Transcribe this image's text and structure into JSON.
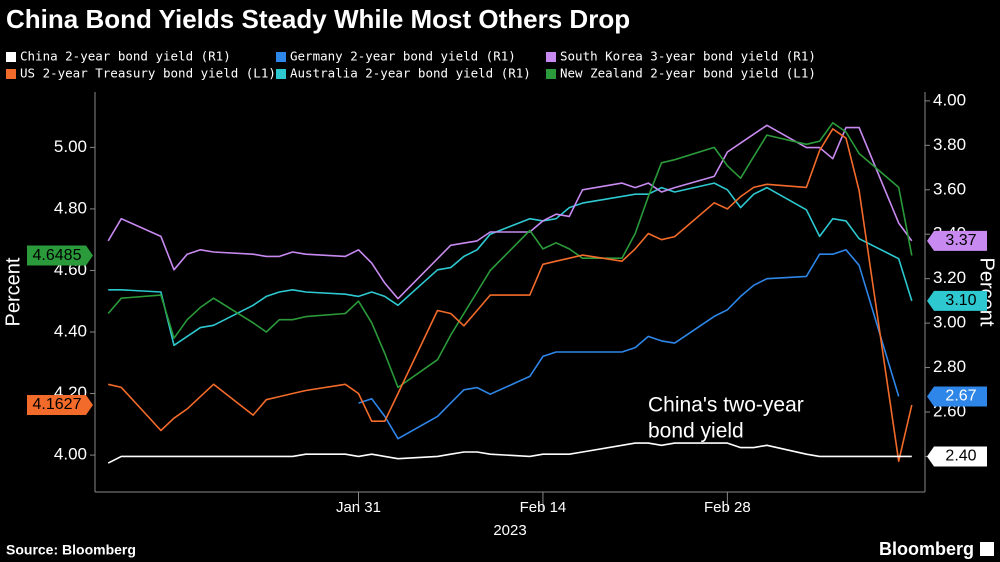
{
  "chart_data": {
    "type": "line",
    "title": "China Bond Yields Steady While Most Others Drop",
    "ylabel": "Percent",
    "y2label": "Percent",
    "x_year_label": "2023",
    "source": "Source: Bloomberg",
    "brand": "Bloomberg",
    "annotation": [
      "China's two-year",
      "bond yield"
    ],
    "grid": false,
    "xlim": [
      "2023-01-11",
      "2023-03-15"
    ],
    "xticks": [
      {
        "value": "2023-01-31",
        "label": "Jan 31"
      },
      {
        "value": "2023-02-14",
        "label": "Feb 14"
      },
      {
        "value": "2023-02-28",
        "label": "Feb 28"
      }
    ],
    "ylim": [
      3.88,
      5.18
    ],
    "yticks": [
      {
        "value": 4,
        "label": "4.00"
      },
      {
        "value": 4.2,
        "label": "4.20"
      },
      {
        "value": 4.4,
        "label": "4.40"
      },
      {
        "value": 4.6,
        "label": "4.60"
      },
      {
        "value": 4.8,
        "label": "4.80"
      },
      {
        "value": 5,
        "label": "5.00"
      }
    ],
    "y2lim": [
      2.24,
      4.04
    ],
    "y2ticks": [
      {
        "value": 2.4,
        "label": "2.40"
      },
      {
        "value": 2.6,
        "label": "2.60"
      },
      {
        "value": 2.8,
        "label": "2.80"
      },
      {
        "value": 3,
        "label": "3.00"
      },
      {
        "value": 3.2,
        "label": "3.20"
      },
      {
        "value": 3.4,
        "label": "3.40"
      },
      {
        "value": 3.6,
        "label": "3.60"
      },
      {
        "value": 3.8,
        "label": "3.80"
      },
      {
        "value": 4,
        "label": "4.00"
      }
    ],
    "x": [
      "2023-01-12",
      "2023-01-13",
      "2023-01-16",
      "2023-01-17",
      "2023-01-18",
      "2023-01-19",
      "2023-01-20",
      "2023-01-23",
      "2023-01-24",
      "2023-01-25",
      "2023-01-26",
      "2023-01-27",
      "2023-01-30",
      "2023-01-31",
      "2023-02-01",
      "2023-02-02",
      "2023-02-03",
      "2023-02-06",
      "2023-02-07",
      "2023-02-08",
      "2023-02-09",
      "2023-02-10",
      "2023-02-13",
      "2023-02-14",
      "2023-02-15",
      "2023-02-16",
      "2023-02-17",
      "2023-02-20",
      "2023-02-21",
      "2023-02-22",
      "2023-02-23",
      "2023-02-24",
      "2023-02-27",
      "2023-02-28",
      "2023-03-01",
      "2023-03-02",
      "2023-03-03",
      "2023-03-06",
      "2023-03-07",
      "2023-03-08",
      "2023-03-09",
      "2023-03-10",
      "2023-03-13",
      "2023-03-14"
    ],
    "series": [
      {
        "name": "China 2-year bond yield (R1)",
        "color": "#ffffff",
        "axis": "y2",
        "last_label": "2.40",
        "values": [
          2.37,
          2.4,
          2.4,
          2.4,
          2.4,
          2.4,
          2.4,
          2.4,
          2.4,
          2.4,
          2.4,
          2.41,
          2.41,
          2.4,
          2.41,
          2.4,
          2.39,
          2.4,
          2.41,
          2.42,
          2.42,
          2.41,
          2.4,
          2.41,
          2.41,
          2.41,
          2.42,
          2.45,
          2.46,
          2.46,
          2.45,
          2.46,
          2.46,
          2.46,
          2.44,
          2.44,
          2.45,
          2.41,
          2.4,
          2.4,
          2.4,
          2.4,
          2.4,
          2.4
        ]
      },
      {
        "name": "US 2-year Treasury bond yield (L1)",
        "color": "#f26b2a",
        "axis": "y",
        "last_label": "4.1627",
        "values": [
          4.23,
          4.22,
          4.08,
          4.12,
          4.15,
          4.19,
          4.23,
          4.13,
          4.18,
          4.19,
          4.2,
          4.21,
          4.23,
          4.2,
          4.11,
          4.11,
          4.2,
          4.47,
          4.46,
          4.42,
          4.47,
          4.52,
          4.52,
          4.62,
          4.63,
          4.64,
          4.65,
          4.63,
          4.67,
          4.72,
          4.7,
          4.71,
          4.82,
          4.8,
          4.84,
          4.87,
          4.88,
          4.87,
          4.99,
          5.06,
          5.03,
          4.86,
          3.98,
          4.1627
        ]
      },
      {
        "name": "Germany 2-year bond yield (R1)",
        "color": "#2e86e8",
        "axis": "y2",
        "last_label": "2.67",
        "values": [
          null,
          null,
          null,
          null,
          null,
          null,
          null,
          null,
          null,
          null,
          null,
          null,
          null,
          2.64,
          2.66,
          2.58,
          2.48,
          2.58,
          2.64,
          2.7,
          2.71,
          2.68,
          2.76,
          2.85,
          2.87,
          2.87,
          2.87,
          2.87,
          2.89,
          2.94,
          2.92,
          2.91,
          3.03,
          3.06,
          3.12,
          3.17,
          3.2,
          3.21,
          3.31,
          3.31,
          3.33,
          3.26,
          2.67,
          null
        ]
      },
      {
        "name": "Australia 2-year bond yield (R1)",
        "color": "#2ec8d0",
        "axis": "y2",
        "last_label": "3.10",
        "values": [
          3.15,
          3.15,
          3.14,
          2.9,
          2.94,
          2.98,
          2.99,
          3.08,
          3.12,
          3.14,
          3.15,
          3.14,
          3.13,
          3.12,
          3.14,
          3.12,
          3.08,
          3.24,
          3.25,
          3.3,
          3.33,
          3.4,
          3.47,
          3.46,
          3.47,
          3.52,
          3.54,
          3.57,
          3.58,
          3.58,
          3.61,
          3.59,
          3.63,
          3.6,
          3.52,
          3.58,
          3.61,
          3.51,
          3.39,
          3.47,
          3.46,
          3.38,
          3.29,
          3.1
        ]
      },
      {
        "name": "South Korea 3-year bond yield (R1)",
        "color": "#c88af0",
        "axis": "y2",
        "last_label": "3.37",
        "values": [
          3.37,
          3.47,
          3.39,
          3.24,
          3.31,
          3.33,
          3.32,
          3.31,
          3.3,
          3.3,
          3.32,
          3.31,
          3.3,
          3.33,
          3.27,
          3.18,
          3.11,
          3.29,
          3.35,
          3.36,
          3.37,
          3.41,
          3.41,
          3.46,
          3.49,
          3.48,
          3.6,
          3.63,
          3.61,
          3.63,
          3.59,
          3.61,
          3.66,
          3.77,
          3.81,
          3.85,
          3.89,
          3.79,
          3.79,
          3.74,
          3.88,
          3.88,
          3.45,
          3.37
        ]
      },
      {
        "name": "New Zealand 2-year bond yield (L1)",
        "color": "#2a9a3a",
        "axis": "y",
        "last_label": "4.6485",
        "values": [
          4.46,
          4.51,
          4.52,
          4.38,
          4.44,
          4.48,
          4.51,
          4.43,
          4.4,
          4.44,
          4.44,
          4.45,
          4.46,
          4.5,
          4.43,
          4.33,
          4.22,
          4.31,
          4.39,
          4.46,
          4.53,
          4.6,
          4.73,
          4.67,
          4.69,
          4.67,
          4.64,
          4.64,
          4.72,
          4.84,
          4.95,
          4.96,
          5,
          4.94,
          4.9,
          4.97,
          5.04,
          5.01,
          5.02,
          5.08,
          5.05,
          4.98,
          4.87,
          4.6485
        ]
      }
    ]
  }
}
